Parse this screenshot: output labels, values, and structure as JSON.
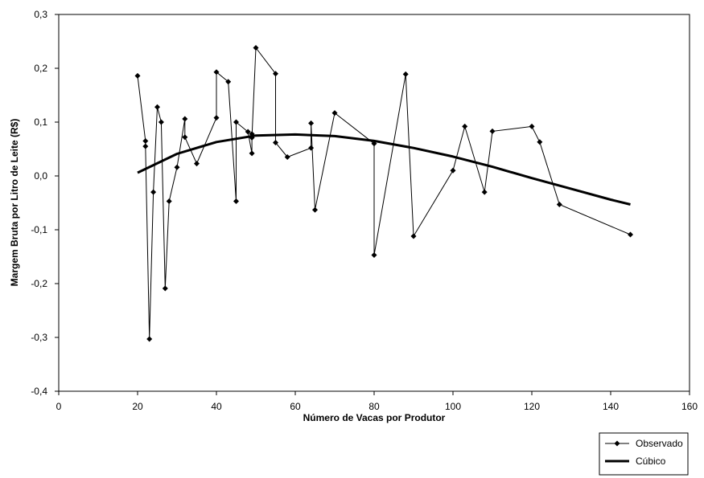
{
  "chart_data": {
    "type": "line",
    "title": "",
    "xlabel": "Número de Vacas por Produtor",
    "ylabel": "Margem Bruta por Litro de Leite (R$)",
    "xlim": [
      0,
      160
    ],
    "ylim": [
      -0.4,
      0.3
    ],
    "x_ticks": [
      "0",
      "20",
      "40",
      "60",
      "80",
      "100",
      "120",
      "140",
      "160"
    ],
    "y_ticks": [
      "-0,4",
      "-0,3",
      "-0,2",
      "-0,1",
      "0,0",
      "0,1",
      "0,2",
      "0,3"
    ],
    "grid": false,
    "legend_position": "bottom-right, outside plot",
    "series": [
      {
        "name": "Observado",
        "style": "thin line with diamond markers",
        "color": "#000000",
        "points": [
          [
            20,
            0.186
          ],
          [
            22,
            0.065
          ],
          [
            22,
            0.055
          ],
          [
            23,
            -0.303
          ],
          [
            24,
            -0.03
          ],
          [
            25,
            0.128
          ],
          [
            26,
            0.1
          ],
          [
            27,
            -0.209
          ],
          [
            28,
            -0.047
          ],
          [
            30,
            0.016
          ],
          [
            32,
            0.106
          ],
          [
            32,
            0.072
          ],
          [
            35,
            0.023
          ],
          [
            40,
            0.108
          ],
          [
            40,
            0.193
          ],
          [
            43,
            0.175
          ],
          [
            45,
            -0.047
          ],
          [
            45,
            0.1
          ],
          [
            48,
            0.082
          ],
          [
            49,
            0.042
          ],
          [
            49,
            0.078
          ],
          [
            49,
            0.071
          ],
          [
            50,
            0.238
          ],
          [
            55,
            0.19
          ],
          [
            55,
            0.062
          ],
          [
            58,
            0.035
          ],
          [
            64,
            0.052
          ],
          [
            64,
            0.098
          ],
          [
            65,
            -0.063
          ],
          [
            70,
            0.117
          ],
          [
            80,
            0.06
          ],
          [
            80,
            -0.147
          ],
          [
            88,
            0.189
          ],
          [
            90,
            -0.112
          ],
          [
            100,
            0.01
          ],
          [
            103,
            0.092
          ],
          [
            108,
            -0.03
          ],
          [
            110,
            0.083
          ],
          [
            120,
            0.092
          ],
          [
            122,
            0.063
          ],
          [
            127,
            -0.053
          ],
          [
            145,
            -0.109
          ]
        ]
      },
      {
        "name": "Cúbico",
        "style": "thick line",
        "color": "#000000",
        "points": [
          [
            20,
            0.006
          ],
          [
            30,
            0.041
          ],
          [
            40,
            0.063
          ],
          [
            50,
            0.075
          ],
          [
            60,
            0.077
          ],
          [
            70,
            0.074
          ],
          [
            80,
            0.065
          ],
          [
            90,
            0.052
          ],
          [
            100,
            0.036
          ],
          [
            110,
            0.017
          ],
          [
            120,
            -0.004
          ],
          [
            130,
            -0.024
          ],
          [
            140,
            -0.044
          ],
          [
            145,
            -0.053
          ]
        ]
      }
    ]
  }
}
